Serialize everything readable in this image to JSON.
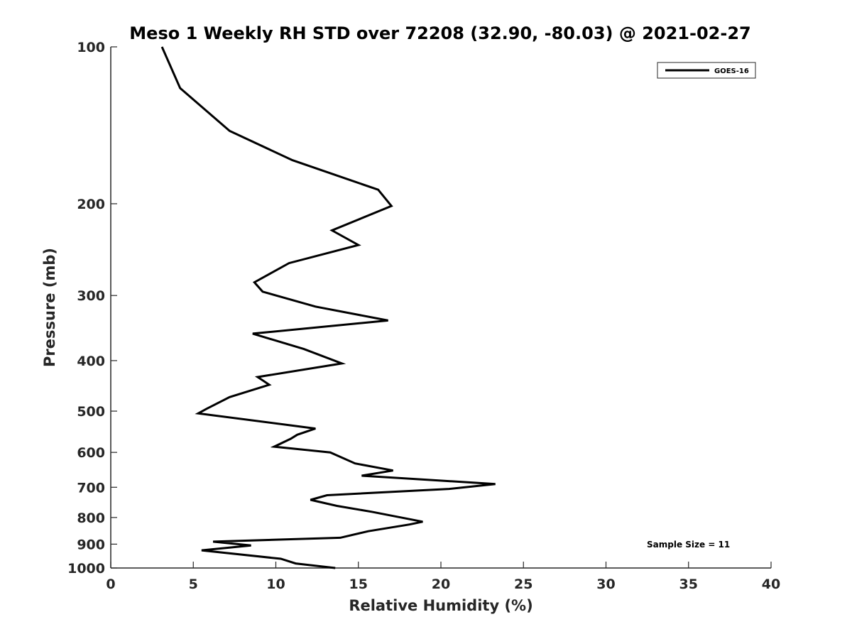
{
  "chart_data": {
    "type": "line",
    "title": "Meso 1 Weekly RH STD over 72208 (32.90, -80.03) @ 2021-02-27",
    "xlabel": "Relative Humidity (%)",
    "ylabel": "Pressure (mb)",
    "xlim": [
      0,
      40
    ],
    "ylim": [
      100,
      1000
    ],
    "y_scale": "log",
    "y_reversed": true,
    "grid": false,
    "legend_position": "top-right",
    "x_ticks": [
      "0",
      "5",
      "10",
      "15",
      "20",
      "25",
      "30",
      "35",
      "40"
    ],
    "y_ticks": [
      "100",
      "200",
      "300",
      "400",
      "500",
      "600",
      "700",
      "800",
      "900",
      "1000"
    ],
    "series": [
      {
        "name": "GOES-16",
        "color": "#000000",
        "x": [
          13.6,
          11.2,
          10.3,
          5.5,
          8.5,
          6.2,
          13.9,
          15.6,
          18.1,
          18.9,
          15.8,
          13.7,
          12.1,
          13.1,
          20.5,
          23.3,
          15.2,
          17.1,
          14.8,
          13.3,
          9.9,
          10.9,
          11.3,
          12.4,
          5.3,
          5.8,
          7.2,
          9.6,
          8.9,
          14.0,
          11.7,
          8.6,
          16.8,
          12.4,
          9.2,
          8.7,
          10.8,
          15.0,
          13.4,
          17.0,
          16.2,
          11.0,
          7.2,
          4.2,
          3.1
        ],
        "y": [
          1000,
          980,
          960,
          925,
          905,
          890,
          875,
          850,
          825,
          815,
          780,
          760,
          740,
          725,
          705,
          690,
          665,
          650,
          630,
          600,
          585,
          565,
          555,
          540,
          505,
          495,
          470,
          445,
          430,
          405,
          380,
          355,
          335,
          315,
          295,
          283,
          260,
          240,
          225,
          202,
          188,
          165,
          145,
          120,
          100
        ]
      }
    ]
  },
  "annotation": {
    "sample_size_text": "Sample Size = 11"
  },
  "legend": {
    "label": "GOES-16"
  }
}
